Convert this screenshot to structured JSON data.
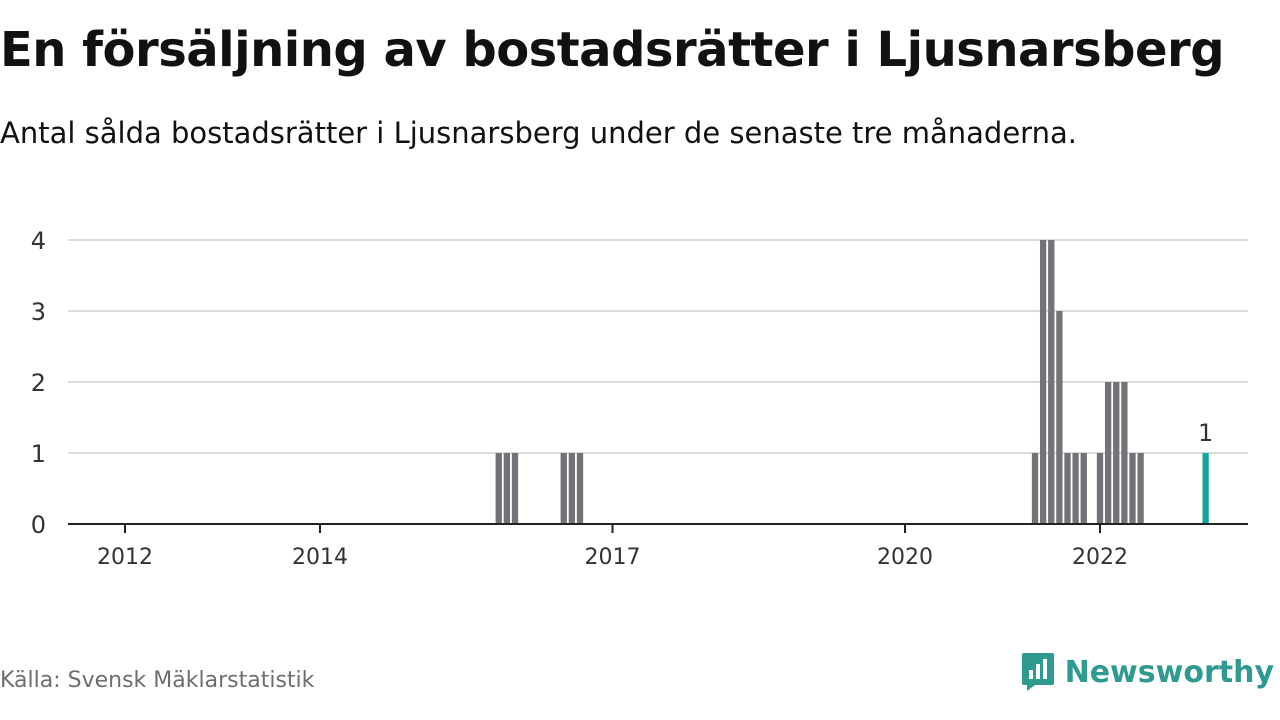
{
  "title": "En försäljning av bostadsrätter i Ljusnarsberg",
  "subtitle": "Antal sålda bostadsrätter i Ljusnarsberg under de senaste tre månaderna.",
  "source": "Källa: Svensk Mäklarstatistik",
  "brand": {
    "name": "Newsworthy",
    "logo_icon": "newsworthy-logo-icon",
    "color": "#2f9a90"
  },
  "colors": {
    "bar": "#737279",
    "highlight": "#17a49a",
    "grid": "#dcdcdc",
    "axis": "#222222",
    "tick_text": "#333333"
  },
  "chart_data": {
    "type": "bar",
    "title": "",
    "xlabel": "",
    "ylabel": "",
    "x_ticks": [
      "2012",
      "2014",
      "2017",
      "2020",
      "2022"
    ],
    "y_ticks": [
      "0",
      "1",
      "2",
      "3",
      "4"
    ],
    "ylim": [
      0,
      4
    ],
    "grid": true,
    "series": [
      {
        "points": [
          {
            "date": "2015-11",
            "value": 1
          },
          {
            "date": "2015-12",
            "value": 1
          },
          {
            "date": "2016-01",
            "value": 1
          },
          {
            "date": "2016-07",
            "value": 1
          },
          {
            "date": "2016-08",
            "value": 1
          },
          {
            "date": "2016-09",
            "value": 1
          },
          {
            "date": "2021-05",
            "value": 1
          },
          {
            "date": "2021-06",
            "value": 4
          },
          {
            "date": "2021-07",
            "value": 4
          },
          {
            "date": "2021-08",
            "value": 3
          },
          {
            "date": "2021-09",
            "value": 1
          },
          {
            "date": "2021-10",
            "value": 1
          },
          {
            "date": "2021-11",
            "value": 1
          },
          {
            "date": "2021-12",
            "value": 0
          },
          {
            "date": "2022-01",
            "value": 1
          },
          {
            "date": "2022-02",
            "value": 2
          },
          {
            "date": "2022-03",
            "value": 2
          },
          {
            "date": "2022-04",
            "value": 2
          },
          {
            "date": "2022-05",
            "value": 1
          },
          {
            "date": "2022-06",
            "value": 1
          }
        ]
      }
    ],
    "highlight": {
      "date": "2023-02",
      "value": 1,
      "label": "1"
    }
  }
}
